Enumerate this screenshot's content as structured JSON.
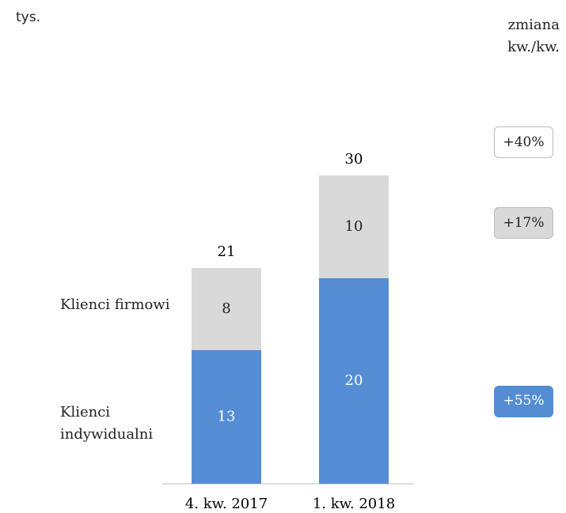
{
  "chart_data": {
    "type": "stacked_bar",
    "unit_label": "tys.",
    "change_title": "zmiana kw./kw.",
    "categories": [
      "4. kw. 2017",
      "1. kw. 2018"
    ],
    "series": [
      {
        "name": "Klienci indywidualni",
        "color": "#548dd4",
        "values": [
          13,
          20
        ],
        "change": 55,
        "change_label": "+55%"
      },
      {
        "name": "Klienci firmowi",
        "color": "#d9d9d9",
        "values": [
          8,
          10
        ],
        "change": 17,
        "change_label": "+17%"
      }
    ],
    "totals": [
      21,
      30
    ],
    "total_change": 40,
    "total_change_label": "+40%"
  }
}
